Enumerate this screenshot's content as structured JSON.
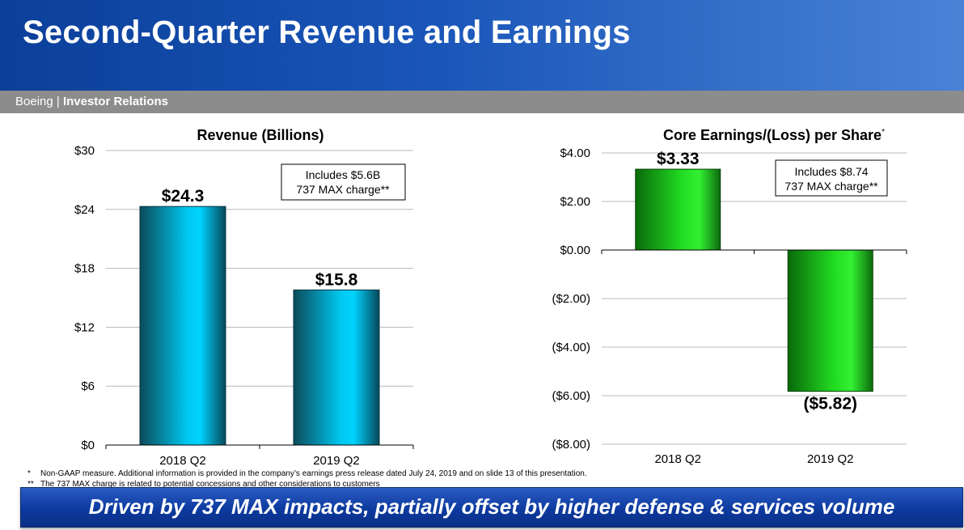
{
  "header": {
    "title": "Second-Quarter Revenue and Earnings",
    "company": "Boeing",
    "separator": " | ",
    "section": "Investor Relations"
  },
  "chart_data": [
    {
      "type": "bar",
      "title": "Revenue (Billions)",
      "categories": [
        "2018 Q2",
        "2019 Q2"
      ],
      "values": [
        24.3,
        15.8
      ],
      "data_labels": [
        "$24.3",
        "$15.8"
      ],
      "ylim": [
        0,
        30
      ],
      "yticks": [
        0,
        6,
        12,
        18,
        24,
        30
      ],
      "ytick_labels": [
        "$0",
        "$6",
        "$12",
        "$18",
        "$24",
        "$30"
      ],
      "grid": true,
      "bar_color": "#00c8f0",
      "note": [
        "Includes $5.6B",
        "737 MAX charge**"
      ]
    },
    {
      "type": "bar",
      "title": "Core Earnings/(Loss) per Share",
      "title_marker": "*",
      "categories": [
        "2018 Q2",
        "2019 Q2"
      ],
      "values": [
        3.33,
        -5.82
      ],
      "data_labels": [
        "$3.33",
        "($5.82)"
      ],
      "ylim": [
        -8,
        4
      ],
      "yticks": [
        4,
        2,
        0,
        -2,
        -4,
        -6,
        -8
      ],
      "ytick_labels": [
        "$4.00",
        "$2.00",
        "$0.00",
        "($2.00)",
        "($4.00)",
        "($6.00)",
        "($8.00)"
      ],
      "grid": true,
      "bar_color": "#22dd22",
      "note": [
        "Includes $8.74",
        "737 MAX charge**"
      ]
    }
  ],
  "footnotes": [
    {
      "marker": "*",
      "text": "Non-GAAP measure. Additional information is provided in the company’s earnings press release dated July 24, 2019 and on slide 13 of this presentation."
    },
    {
      "marker": "**",
      "text": "The 737 MAX charge is related to potential concessions and other considerations to customers"
    }
  ],
  "tagline": "Driven by 737 MAX impacts, partially offset by higher defense & services volume"
}
